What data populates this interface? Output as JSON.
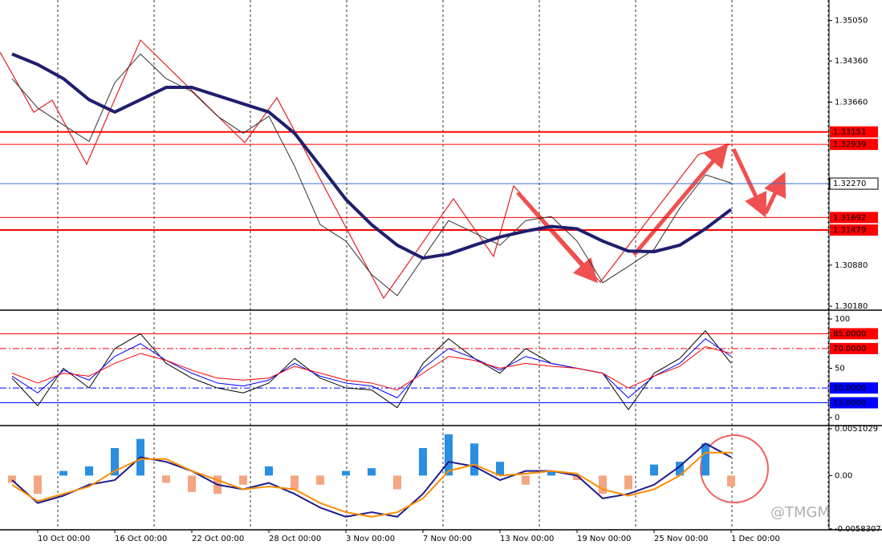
{
  "watermark": "@TMGM",
  "chart_data": [
    {
      "type": "line",
      "ylim": [
        1.3014,
        1.354
      ],
      "yticks": [
        {
          "value": 1.3505,
          "label": "1.35050"
        },
        {
          "value": 1.3436,
          "label": "1.34360"
        },
        {
          "value": 1.3366,
          "label": "1.33660"
        },
        {
          "value": 1.3088,
          "label": "1.30880"
        },
        {
          "value": 1.3018,
          "label": "1.30180"
        }
      ],
      "levels": [
        {
          "value": 1.33151,
          "color": "#ff0000",
          "width": 2
        },
        {
          "value": 1.32939,
          "color": "#ff0000",
          "width": 1
        },
        {
          "value": 1.3227,
          "label": "1.32270",
          "color": "#3a6fd8",
          "width": 1
        },
        {
          "value": 1.31692,
          "color": "#ff0000",
          "width": 1
        },
        {
          "value": 1.31479,
          "color": "#ff0000",
          "width": 2
        }
      ],
      "series": [
        {
          "color": "#333333",
          "width": 1,
          "values": [
            1.3406,
            1.3356,
            1.3327,
            1.3299,
            1.3399,
            1.3448,
            1.3406,
            1.3384,
            1.3342,
            1.3313,
            1.3342,
            1.3257,
            1.3157,
            1.3129,
            1.3072,
            1.3036,
            1.31,
            1.3164,
            1.3143,
            1.3122,
            1.3164,
            1.3171,
            1.3129,
            1.3058,
            1.3086,
            1.3115,
            1.3185,
            1.3242,
            1.3228
          ]
        },
        {
          "color": "#1f1f6e",
          "width": 4,
          "values": [
            1.3448,
            1.343,
            1.3406,
            1.337,
            1.3349,
            1.337,
            1.3391,
            1.3391,
            1.3377,
            1.3363,
            1.3349,
            1.3313,
            1.3257,
            1.32,
            1.3157,
            1.3122,
            1.31,
            1.3107,
            1.3122,
            1.3136,
            1.3146,
            1.3154,
            1.315,
            1.3129,
            1.3112,
            1.3111,
            1.3122,
            1.315,
            1.3183
          ]
        }
      ]
    },
    {
      "type": "line",
      "ylim": [
        -5.7,
        106.5
      ],
      "yticks": [
        0,
        50,
        100
      ],
      "levels": [
        {
          "value": 85,
          "label": "85.0000",
          "color": "#ff0000",
          "dash": false
        },
        {
          "value": 70,
          "label": "70.0000",
          "color": "#ff0000",
          "dash": true
        },
        {
          "value": 30,
          "label": "30.0000",
          "color": "#0000ff",
          "dash": true
        },
        {
          "value": 15,
          "label": "15.0000",
          "color": "#0000ff",
          "dash": false
        }
      ],
      "series": [
        {
          "color": "#000000",
          "width": 1,
          "values": [
            40,
            12,
            50,
            30,
            70,
            85,
            55,
            40,
            30,
            25,
            35,
            60,
            40,
            30,
            28,
            10,
            55,
            80,
            60,
            45,
            70,
            55,
            50,
            45,
            8,
            45,
            60,
            88,
            55
          ]
        },
        {
          "color": "#0000ff",
          "width": 1,
          "values": [
            42,
            25,
            48,
            38,
            62,
            75,
            58,
            45,
            35,
            32,
            38,
            55,
            42,
            35,
            32,
            20,
            50,
            70,
            60,
            48,
            62,
            55,
            50,
            45,
            20,
            42,
            55,
            80,
            62
          ]
        },
        {
          "color": "#ff0000",
          "width": 1,
          "values": [
            45,
            35,
            45,
            42,
            55,
            65,
            58,
            48,
            40,
            38,
            40,
            52,
            45,
            38,
            35,
            28,
            45,
            62,
            58,
            50,
            55,
            52,
            50,
            45,
            30,
            42,
            52,
            72,
            65
          ]
        }
      ]
    },
    {
      "type": "combo",
      "ylim": [
        -0.0058307,
        0.0051029
      ],
      "yticks": [
        0.0051029,
        {
          "value": 0,
          "label": "0.00"
        },
        -0.0058307
      ],
      "categories": [
        null,
        "10 Oct 00:00",
        null,
        null,
        "16 Oct 00:00",
        null,
        null,
        "22 Oct 00:00",
        null,
        null,
        "28 Oct 00:00",
        null,
        null,
        "3 Nov 00:00",
        null,
        null,
        "7 Nov 00:00",
        null,
        null,
        "13 Nov 00:00",
        null,
        null,
        "19 Nov 00:00",
        null,
        null,
        "25 Nov 00:00",
        null,
        null,
        "1 Dec 00:00"
      ],
      "pos_color": "#2a8fe0",
      "neg_color": "#f4a582",
      "values": [
        -0.0008,
        -0.002,
        0.0005,
        0.001,
        0.003,
        0.004,
        -0.0008,
        -0.0018,
        -0.002,
        -0.001,
        0.001,
        -0.0015,
        -0.001,
        0.0005,
        0.0008,
        -0.0015,
        0.003,
        0.0045,
        0.0035,
        0.0015,
        -0.001,
        0.0005,
        -0.0005,
        -0.002,
        -0.0015,
        0.0012,
        0.0015,
        0.0035,
        -0.0012
      ],
      "series": [
        {
          "color": "#1c1c8c",
          "width": 2,
          "values": [
            -0.0005,
            -0.003,
            -0.0022,
            -0.001,
            -0.0005,
            0.002,
            0.0015,
            0.0005,
            -0.001,
            -0.0015,
            -0.0008,
            -0.002,
            -0.0035,
            -0.0045,
            -0.004,
            -0.0045,
            -0.002,
            0.0015,
            0.001,
            -0.0005,
            0.0005,
            0.0005,
            0,
            -0.0025,
            -0.002,
            -0.001,
            0.001,
            0.0035,
            0.002
          ]
        },
        {
          "color": "#ff8c00",
          "width": 2,
          "values": [
            -0.001,
            -0.0028,
            -0.002,
            -0.0012,
            0.0005,
            0.0018,
            0.0018,
            0.0005,
            -0.0005,
            -0.0015,
            -0.0012,
            -0.0015,
            -0.003,
            -0.004,
            -0.0045,
            -0.004,
            -0.0025,
            0.0005,
            0.0012,
            0,
            0.0002,
            0.0005,
            0.0002,
            -0.0015,
            -0.0022,
            -0.0015,
            0,
            0.0025,
            0.0025
          ]
        }
      ]
    }
  ]
}
